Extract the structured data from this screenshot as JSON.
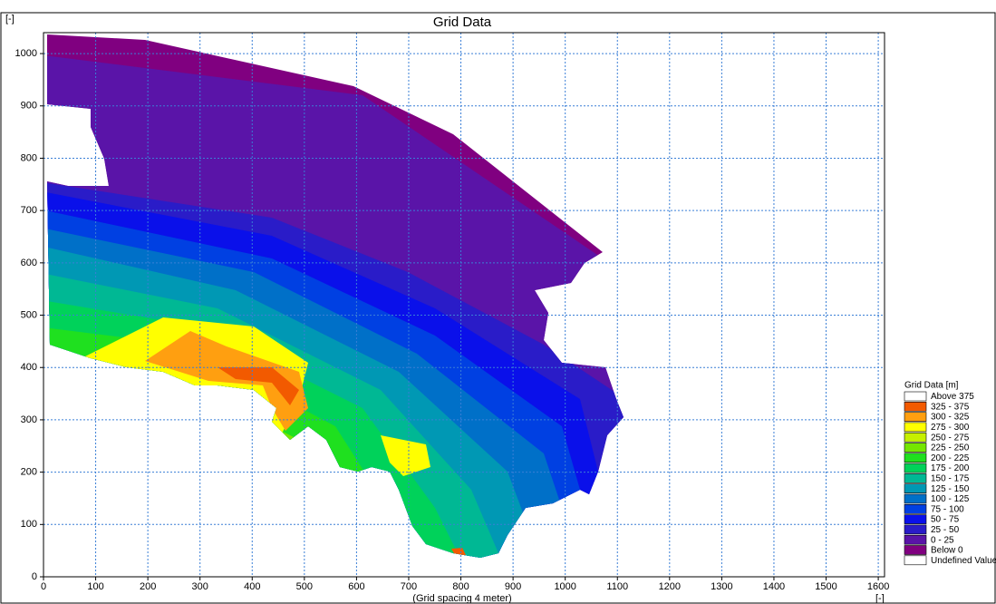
{
  "chart_data": {
    "type": "contour",
    "title": "Grid Data",
    "x_label": "(Grid spacing 4 meter)",
    "x_unit": "[-]",
    "y_unit": "[-]",
    "xlim": [
      0,
      1612
    ],
    "ylim": [
      0,
      1040
    ],
    "xticks": [
      0,
      100,
      200,
      300,
      400,
      500,
      600,
      700,
      800,
      900,
      1000,
      1100,
      1200,
      1300,
      1400,
      1500,
      1600
    ],
    "yticks": [
      0,
      100,
      200,
      300,
      400,
      500,
      600,
      700,
      800,
      900,
      1000
    ],
    "grid": true,
    "legend": {
      "title": "Grid Data [m]",
      "items": [
        {
          "label": "Above 375",
          "color": "#ffffff"
        },
        {
          "label": "325 - 375",
          "color": "#f25a00"
        },
        {
          "label": "300 - 325",
          "color": "#ff9f10"
        },
        {
          "label": "275 - 300",
          "color": "#ffff00"
        },
        {
          "label": "250 - 275",
          "color": "#c6f000"
        },
        {
          "label": "225 - 250",
          "color": "#74e600"
        },
        {
          "label": "200 - 225",
          "color": "#1fe01f"
        },
        {
          "label": "175 - 200",
          "color": "#00d25a"
        },
        {
          "label": "150 - 175",
          "color": "#00b894"
        },
        {
          "label": "125 - 150",
          "color": "#0098b4"
        },
        {
          "label": "100 - 125",
          "color": "#0070c8"
        },
        {
          "label": "75 - 100",
          "color": "#0040e2"
        },
        {
          "label": "50 - 75",
          "color": "#0a10ea"
        },
        {
          "label": "25 - 50",
          "color": "#2a1cc8"
        },
        {
          "label": "0 - 25",
          "color": "#5a14a8"
        },
        {
          "label": "Below 0",
          "color": "#800080"
        },
        {
          "label": "Undefined Value",
          "color": "#ffffff"
        }
      ]
    }
  }
}
